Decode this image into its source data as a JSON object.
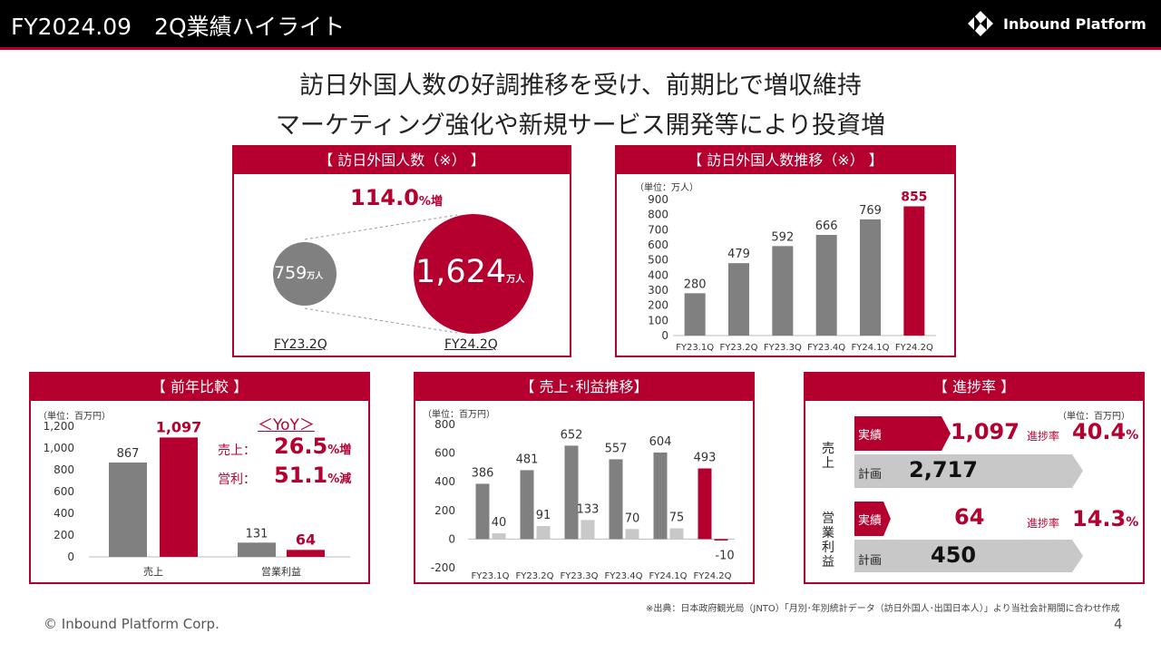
{
  "header": {
    "title": "FY2024.09　2Q業績ハイライト",
    "logo_text": "Inbound Platform"
  },
  "headline": {
    "line1": "訪日外国人数の好調推移を受け、前期比で増収維持",
    "line2": "マーケティング強化や新規サービス開発等により投資増"
  },
  "visitors_panel": {
    "title": "【 訪日外国人数（※） 】",
    "growth_value": "114.0",
    "growth_suffix": "%増",
    "prev_value": "759",
    "prev_unit": "万人",
    "curr_value": "1,624",
    "curr_unit": "万人",
    "prev_label": "FY23.2Q",
    "curr_label": "FY24.2Q"
  },
  "visitors_trend": {
    "title": "【 訪日外国人数推移（※） 】",
    "unit": "（単位：万人）",
    "chart_data": {
      "type": "bar",
      "categories": [
        "FY23.1Q",
        "FY23.2Q",
        "FY23.3Q",
        "FY23.4Q",
        "FY24.1Q",
        "FY24.2Q"
      ],
      "values": [
        280,
        479,
        592,
        666,
        769,
        855
      ],
      "ylim": [
        0,
        900
      ],
      "yticks": [
        0,
        100,
        200,
        300,
        400,
        500,
        600,
        700,
        800,
        900
      ],
      "highlight_index": 5,
      "colors": {
        "bar": "#808080",
        "highlight": "#b5002f"
      }
    }
  },
  "yoy_panel": {
    "title": "【 前年比較 】",
    "unit": "（単位：百万円）",
    "chart_data": {
      "type": "bar",
      "categories": [
        "売上",
        "営業利益"
      ],
      "series": [
        {
          "values": [
            867,
            131
          ]
        },
        {
          "values": [
            1097,
            64
          ]
        }
      ],
      "value_labels": [
        [
          "867",
          "131"
        ],
        [
          "1,097",
          "64"
        ]
      ],
      "ylim": [
        0,
        1200
      ],
      "ytick_labels": [
        "0",
        "200",
        "400",
        "600",
        "800",
        "1,000",
        "1,200"
      ],
      "colors": {
        "prev": "#808080",
        "curr": "#b5002f"
      }
    },
    "yoy_heading": "＜YoY＞",
    "sales_label": "売上：",
    "sales_value": "26.5",
    "sales_suffix": "%増",
    "op_label": "営利：",
    "op_value": "51.1",
    "op_suffix": "%減"
  },
  "sales_profit_panel": {
    "title": "【 売上･利益推移】",
    "unit": "（単位：百万円）",
    "chart_data": {
      "type": "bar",
      "categories": [
        "FY23.1Q",
        "FY23.2Q",
        "FY23.3Q",
        "FY23.4Q",
        "FY24.1Q",
        "FY24.2Q"
      ],
      "series": [
        {
          "values": [
            386,
            481,
            652,
            557,
            604,
            493
          ]
        },
        {
          "values": [
            40,
            91,
            133,
            70,
            75,
            -10
          ]
        }
      ],
      "ylim": [
        -200,
        800
      ],
      "yticks": [
        -200,
        0,
        200,
        400,
        600,
        800
      ],
      "highlight_index": 5,
      "colors": {
        "sales": "#808080",
        "profit": "#c8c8c8",
        "highlight": "#b5002f"
      }
    }
  },
  "progress_panel": {
    "title": "【 進捗率 】",
    "unit": "（単位：百万円）",
    "sales": {
      "row_label": "売上",
      "actual_label": "実績",
      "actual_value": "1,097",
      "plan_label": "計画",
      "plan_value": "2,717",
      "rate_label": "進捗率",
      "rate_value": "40.4",
      "rate_suffix": "%"
    },
    "op": {
      "row_label": "営業利益",
      "actual_label": "実績",
      "actual_value": "64",
      "plan_label": "計画",
      "plan_value": "450",
      "rate_label": "進捗率",
      "rate_value": "14.3",
      "rate_suffix": "%"
    }
  },
  "footnote": "※出典：日本政府観光局（JNTO）「月別･年別統計データ（訪日外国人･出国日本人）」より当社会計期間に合わせ作成",
  "footer": {
    "copyright": "© Inbound Platform Corp.",
    "page": "4"
  }
}
